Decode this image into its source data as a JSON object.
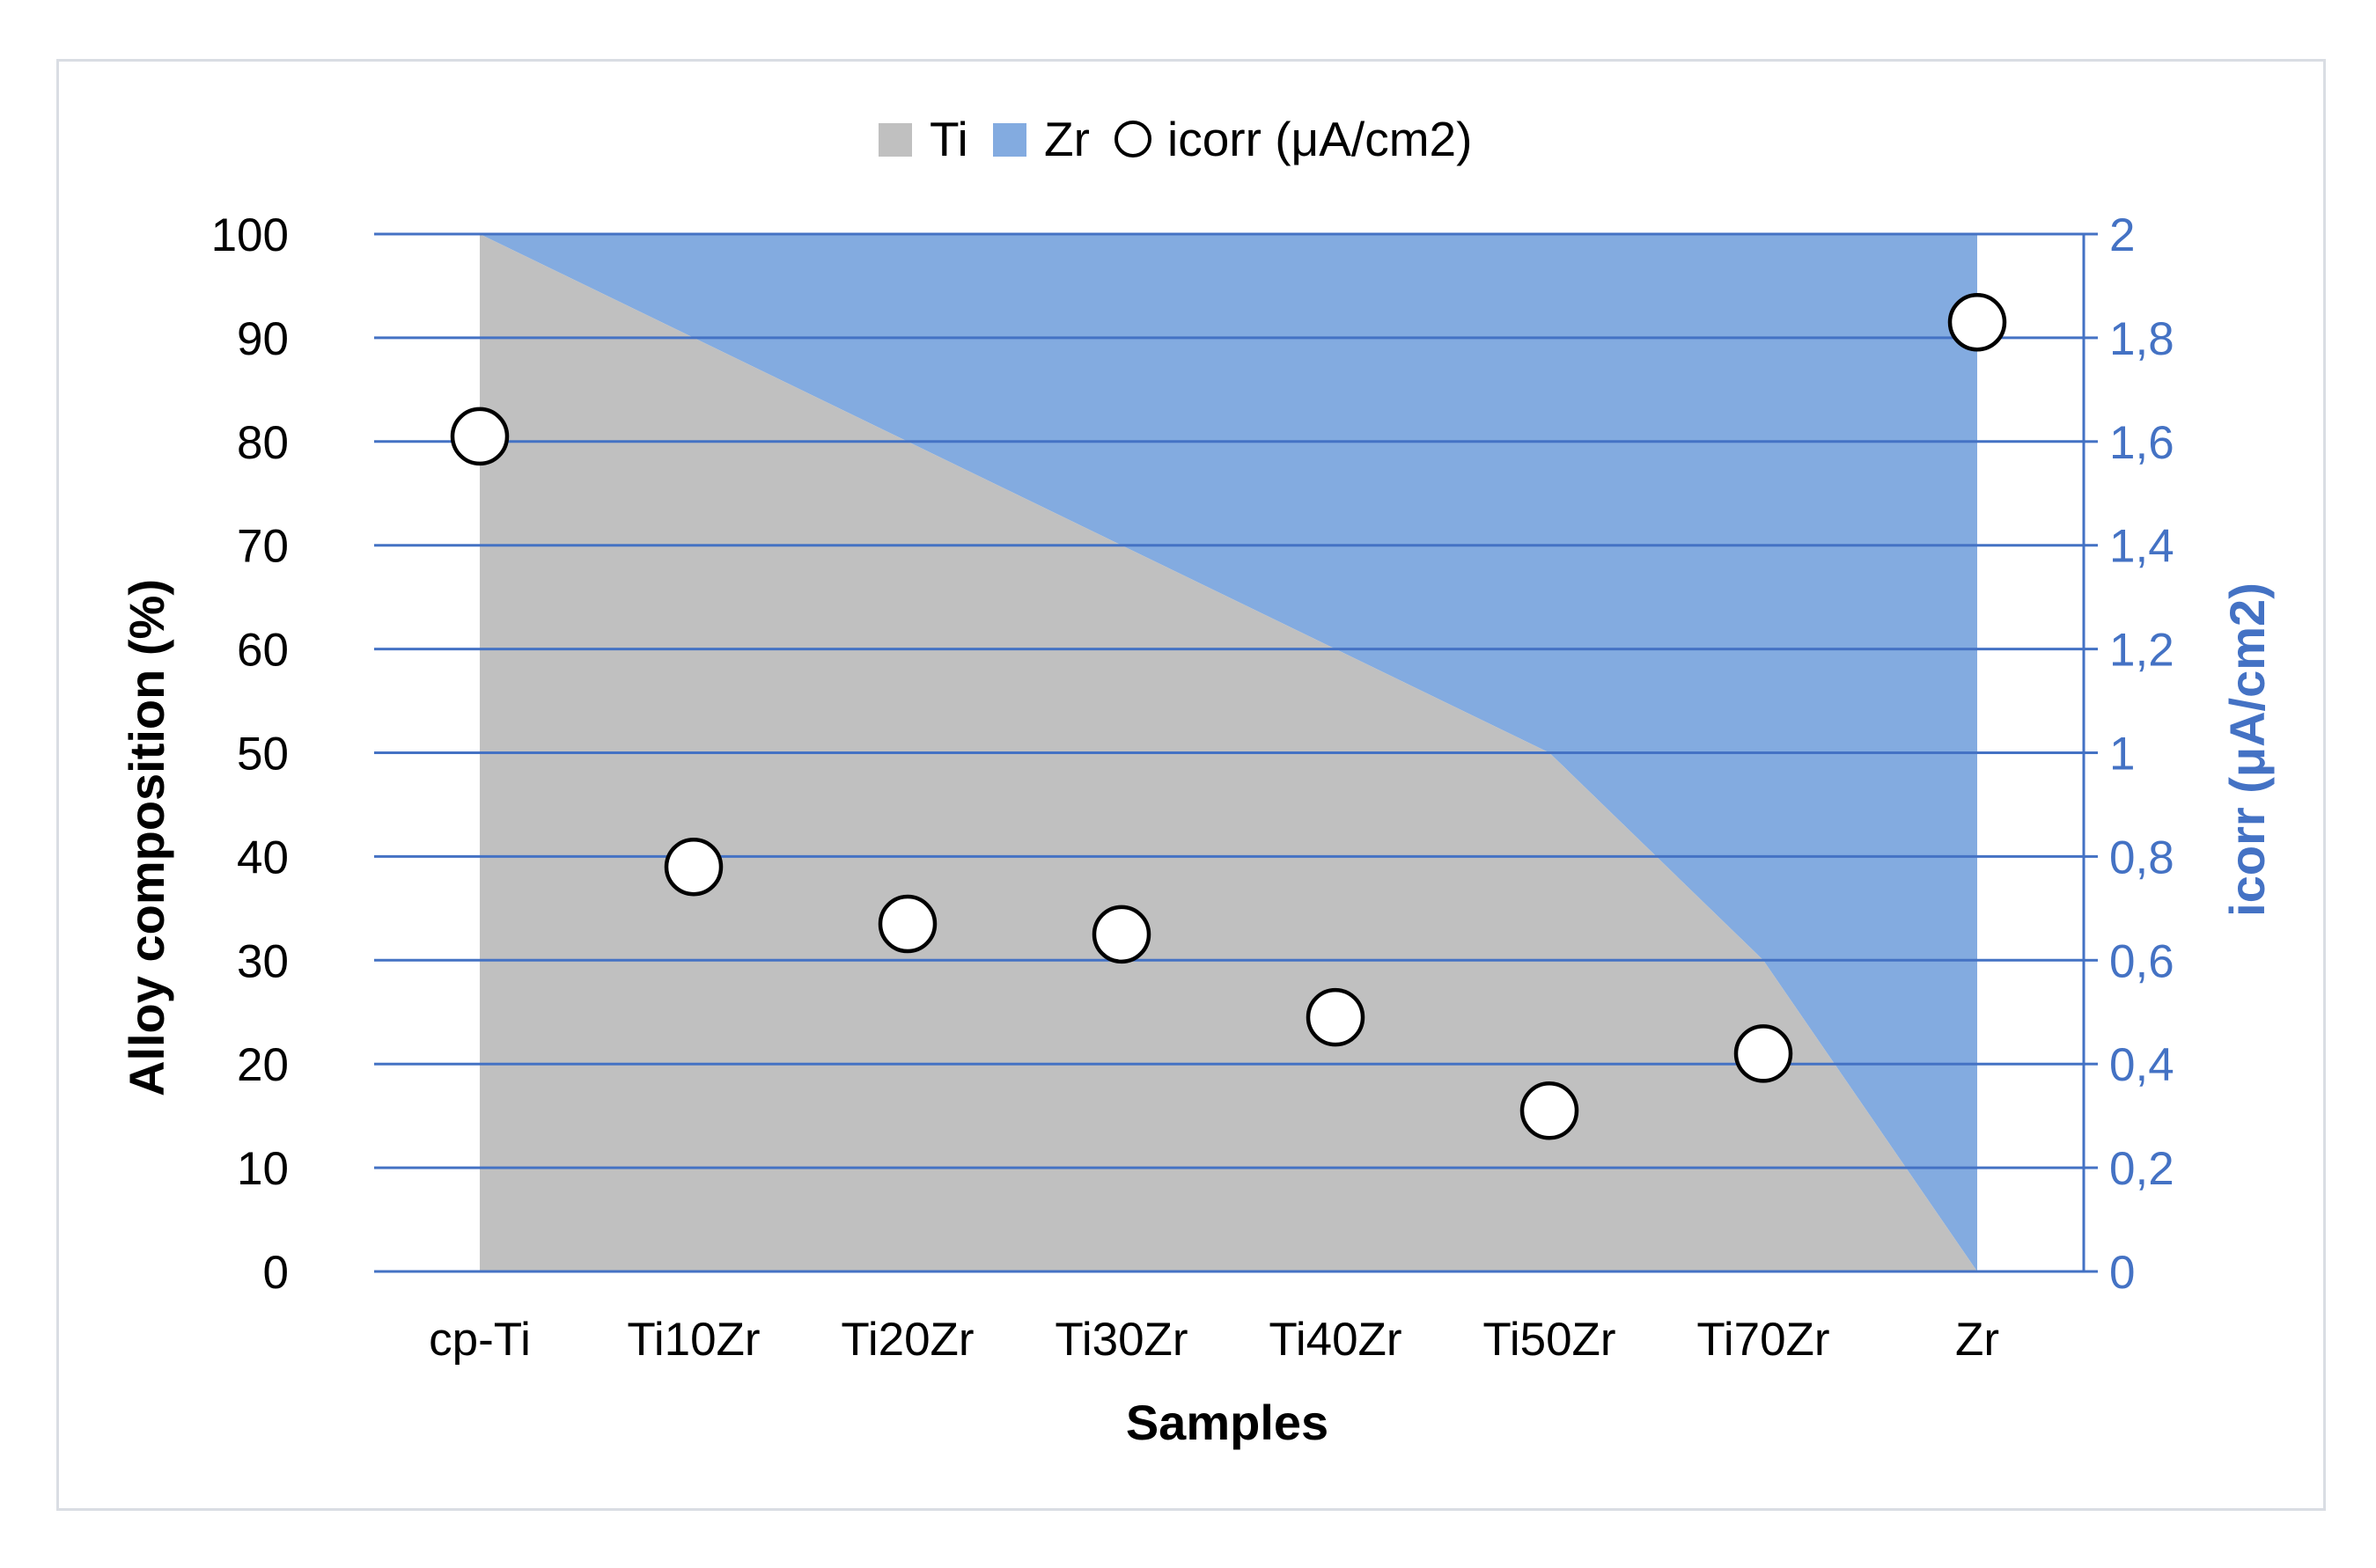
{
  "chart_data": {
    "type": "area",
    "title": "",
    "xlabel": "Samples",
    "ylabel": "Alloy composition (%)",
    "y2label": "icorr (μA/cm2)",
    "categories": [
      "cp-Ti",
      "Ti10Zr",
      "Ti20Zr",
      "Ti30Zr",
      "Ti40Zr",
      "Ti50Zr",
      "Ti70Zr",
      "Zr"
    ],
    "ylim": [
      0,
      100
    ],
    "y2lim": [
      0,
      2
    ],
    "y_ticks": [
      "0",
      "10",
      "20",
      "30",
      "40",
      "50",
      "60",
      "70",
      "80",
      "90",
      "100"
    ],
    "y2_ticks": [
      "0",
      "0,2",
      "0,4",
      "0,6",
      "0,8",
      "1",
      "1,2",
      "1,4",
      "1,6",
      "1,8",
      "2"
    ],
    "legend_position": "top",
    "series": [
      {
        "name": "Ti",
        "type": "stacked-area",
        "axis": "left",
        "color": "#c0c0c0",
        "values": [
          100,
          90,
          80,
          70,
          60,
          50,
          30,
          0
        ]
      },
      {
        "name": "Zr",
        "type": "stacked-area",
        "axis": "left",
        "color": "#83abe0",
        "values": [
          0,
          10,
          20,
          30,
          40,
          50,
          70,
          100
        ]
      },
      {
        "name": "icorr (μA/cm2)",
        "type": "scatter",
        "axis": "right",
        "marker": "open-circle",
        "values": [
          1.61,
          0.78,
          0.67,
          0.65,
          0.49,
          0.31,
          0.42,
          1.83
        ]
      }
    ],
    "colors": {
      "left_axis": "#000000",
      "right_axis": "#4472c4",
      "grid": "#4472c4"
    }
  }
}
